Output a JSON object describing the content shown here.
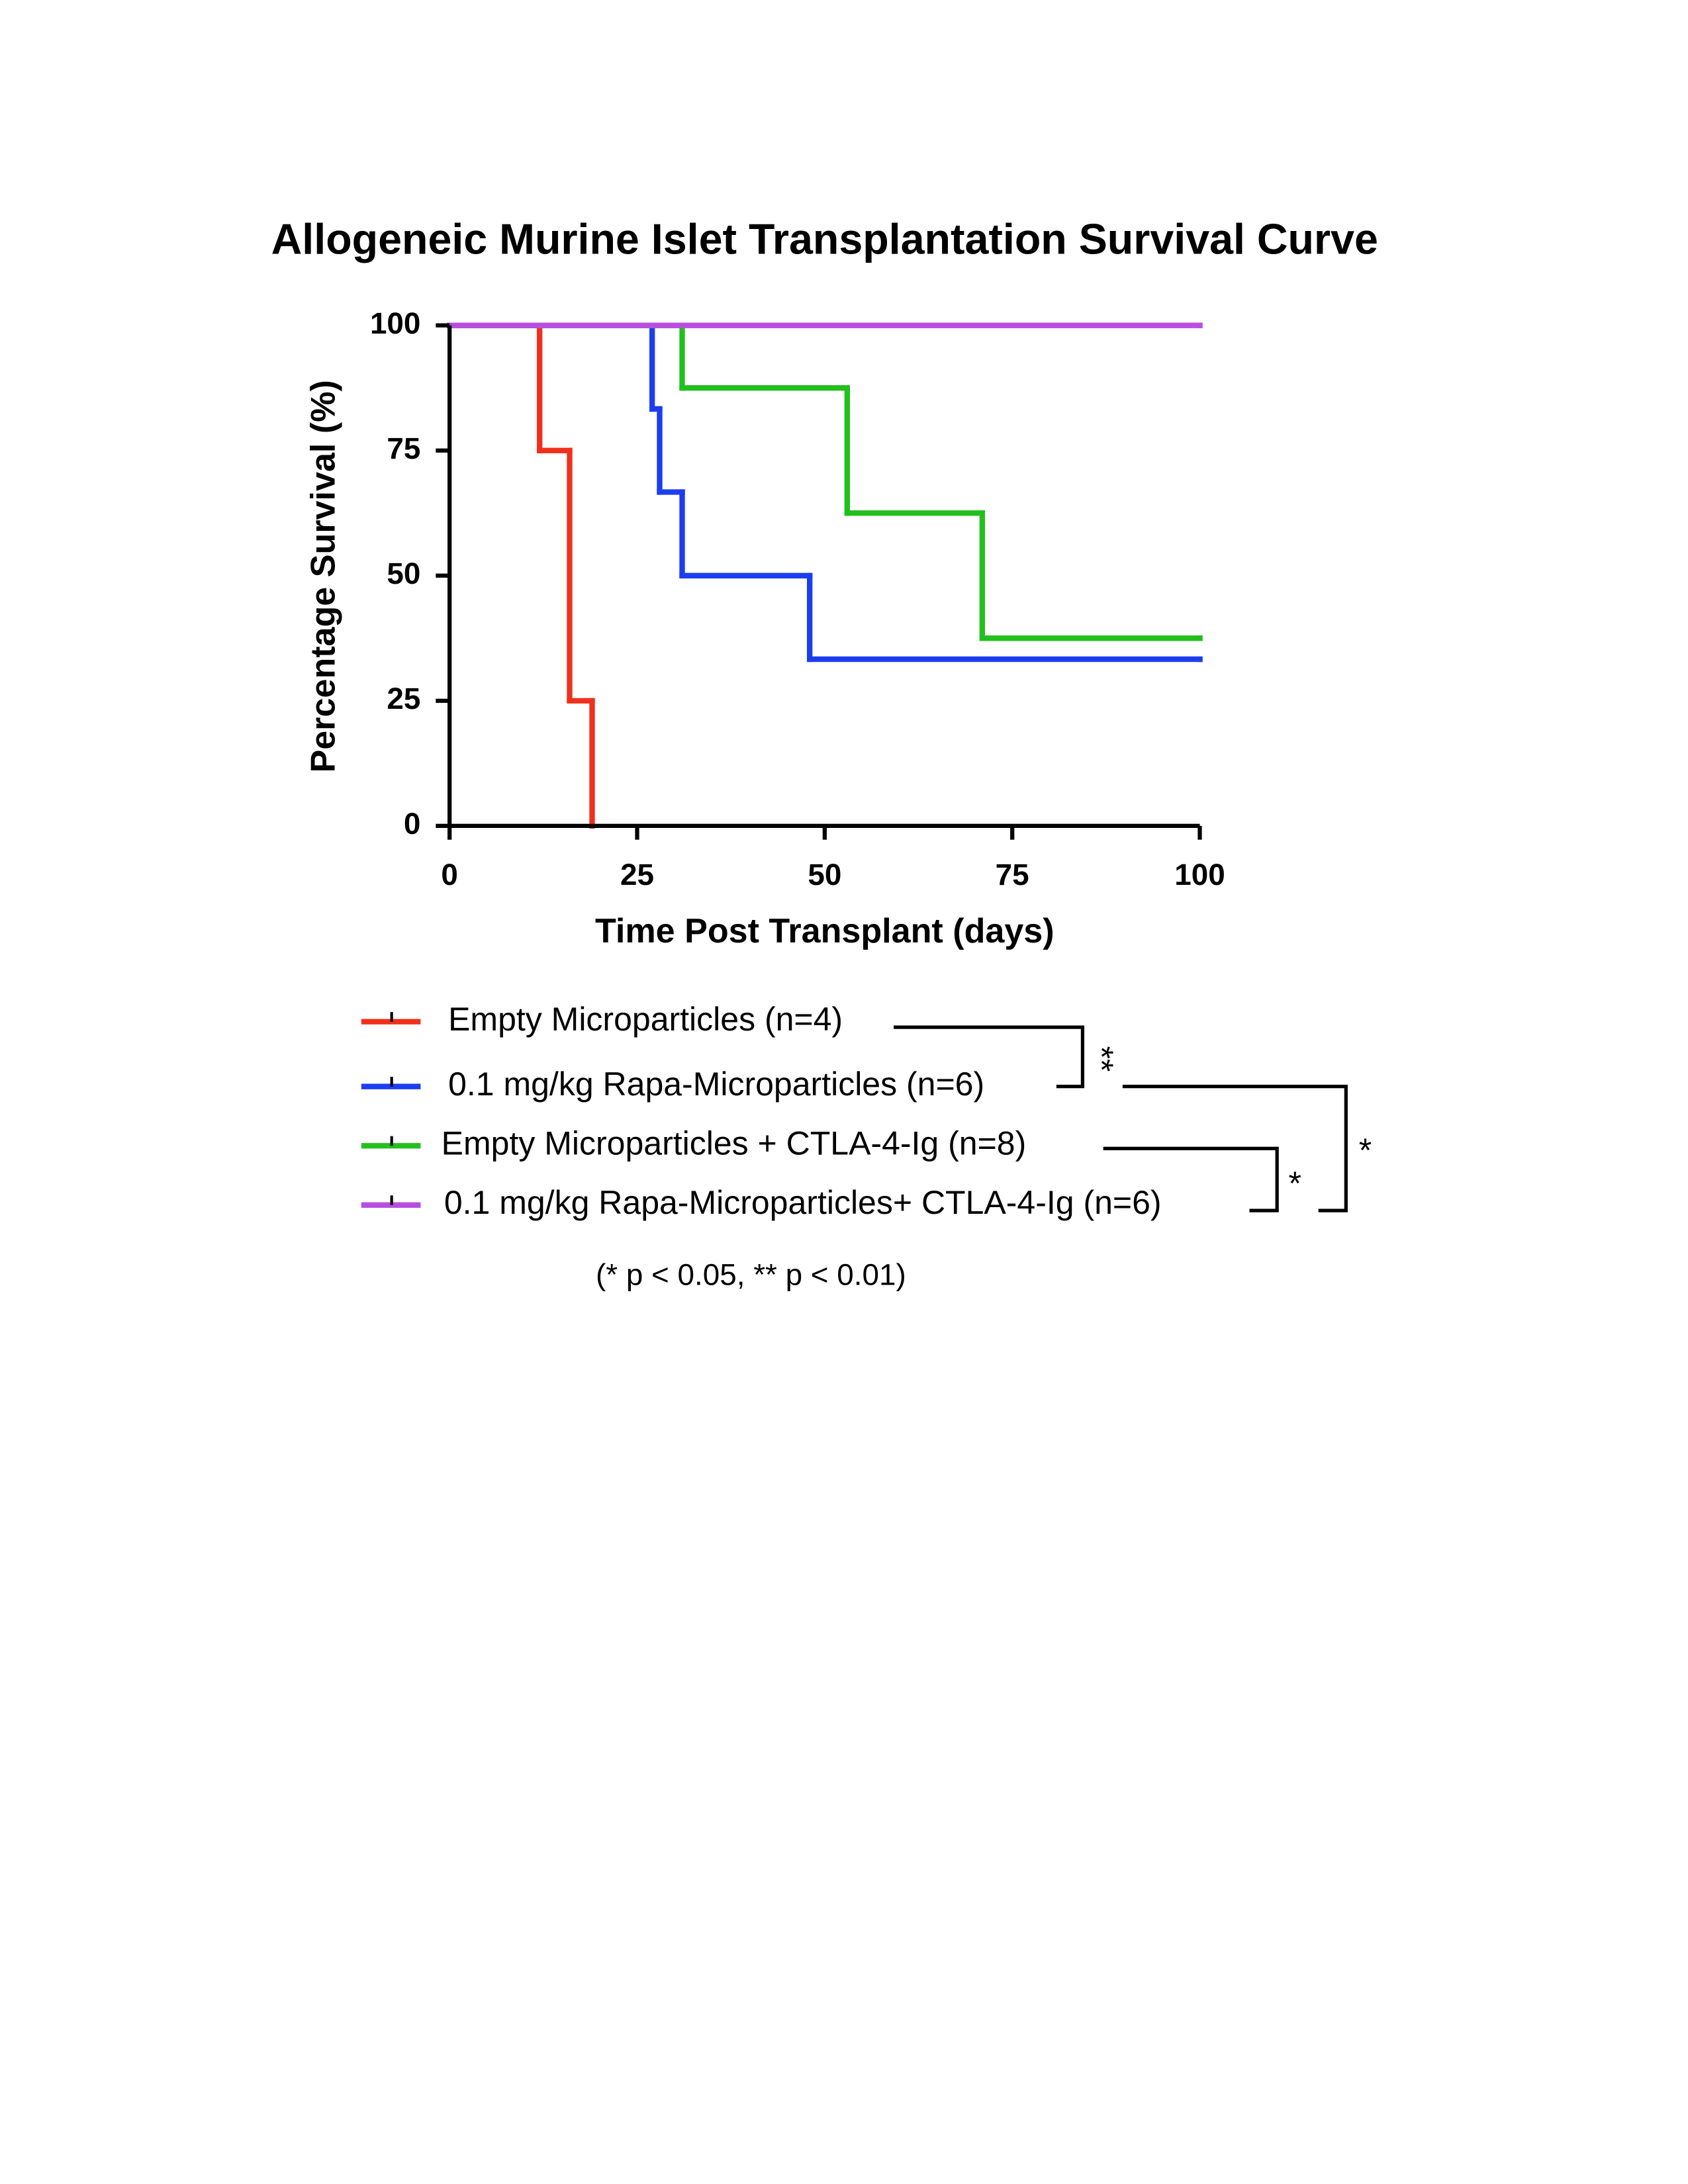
{
  "chart_data": {
    "type": "step",
    "title": "Allogeneic Murine Islet Transplantation Survival Curve",
    "x_label": "Time Post Transplant (days)",
    "y_label": "Percentage Survival (%)",
    "xlim": [
      0,
      100
    ],
    "xticks": [
      0,
      25,
      50,
      75,
      100
    ],
    "ylim": [
      0,
      100
    ],
    "yticks": [
      0,
      25,
      50,
      75,
      100
    ],
    "series": [
      {
        "name": "Empty Microparticles (n=4)",
        "color": "#f0301c",
        "x": [
          0,
          12,
          16,
          19
        ],
        "values": [
          100,
          75,
          25,
          0
        ]
      },
      {
        "name": "0.1 mg/kg Rapa-Microparticles (n=6)",
        "color": "#1c3ef0",
        "x": [
          0,
          27,
          28,
          31,
          48,
          100
        ],
        "values": [
          100,
          83.3,
          66.7,
          50,
          33.3,
          33.3
        ]
      },
      {
        "name": "Empty Microparticles + CTLA-4-Ig (n=8)",
        "color": "#22c01c",
        "x": [
          0,
          31,
          53,
          71,
          100
        ],
        "values": [
          100,
          87.5,
          62.5,
          37.5,
          37.5
        ]
      },
      {
        "name": "0.1 mg/kg Rapa-Microparticles+ CTLA-4-Ig (n=6)",
        "color": "#b84ee0",
        "x": [
          0,
          100
        ],
        "values": [
          100,
          100
        ]
      }
    ],
    "annotations": [
      "**",
      "*",
      "*"
    ],
    "footnote": "(*  p < 0.05, ** p < 0.01)"
  }
}
